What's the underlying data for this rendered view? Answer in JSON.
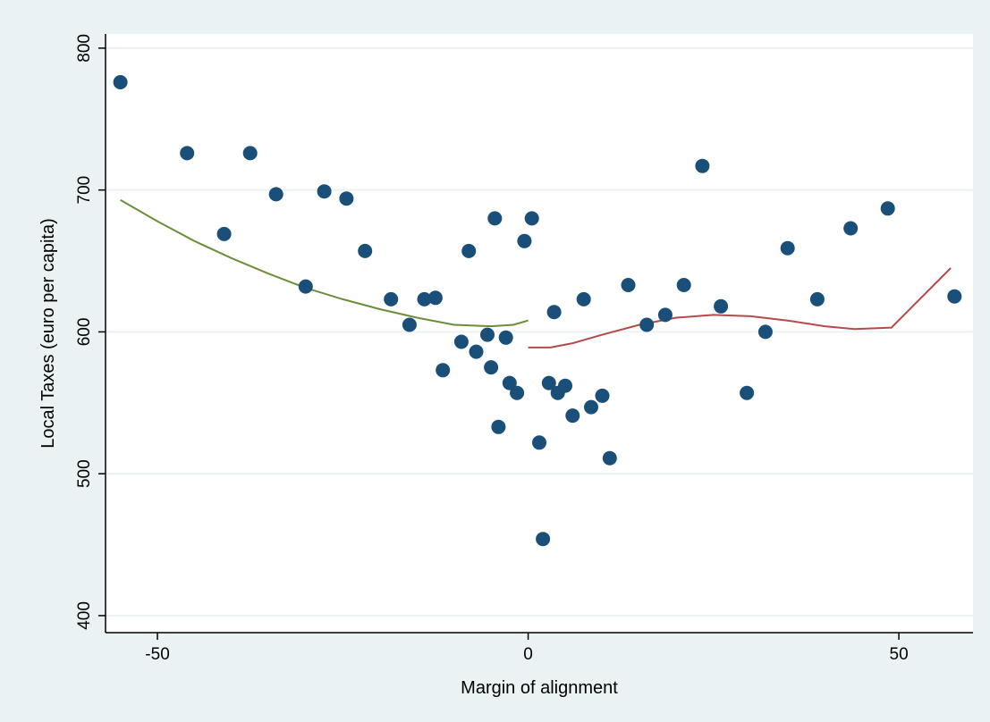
{
  "chart_data": {
    "type": "scatter",
    "title": "",
    "xlabel": "Margin of alignment",
    "ylabel": "Local Taxes (euro per capita)",
    "xlim": [
      -57,
      60
    ],
    "ylim": [
      388,
      810
    ],
    "xticks": [
      -50,
      0,
      50
    ],
    "yticks": [
      400,
      500,
      600,
      700,
      800
    ],
    "grid": true,
    "series": [
      {
        "type": "scatter",
        "color": "#1a4f7a",
        "points": [
          [
            -55,
            776
          ],
          [
            -46,
            726
          ],
          [
            -41,
            669
          ],
          [
            -37.5,
            726
          ],
          [
            -34,
            697
          ],
          [
            -30,
            632
          ],
          [
            -27.5,
            699
          ],
          [
            -24.5,
            694
          ],
          [
            -22,
            657
          ],
          [
            -18.5,
            623
          ],
          [
            -16,
            605
          ],
          [
            -14,
            623
          ],
          [
            -12.5,
            624
          ],
          [
            -11.5,
            573
          ],
          [
            -9,
            593
          ],
          [
            -8,
            657
          ],
          [
            -7,
            586
          ],
          [
            -5.5,
            598
          ],
          [
            -5,
            575
          ],
          [
            -4.5,
            680
          ],
          [
            -4,
            533
          ],
          [
            -3,
            596
          ],
          [
            -2.5,
            564
          ],
          [
            -1.5,
            557
          ],
          [
            -0.5,
            664
          ],
          [
            0.5,
            680
          ],
          [
            1.5,
            522
          ],
          [
            2,
            454
          ],
          [
            2.8,
            564
          ],
          [
            3.5,
            614
          ],
          [
            4,
            557
          ],
          [
            5,
            562
          ],
          [
            6,
            541
          ],
          [
            7.5,
            623
          ],
          [
            8.5,
            547
          ],
          [
            10,
            555
          ],
          [
            11,
            511
          ],
          [
            13.5,
            633
          ],
          [
            16,
            605
          ],
          [
            18.5,
            612
          ],
          [
            21,
            633
          ],
          [
            23.5,
            717
          ],
          [
            26,
            618
          ],
          [
            29.5,
            557
          ],
          [
            32,
            600
          ],
          [
            35,
            659
          ],
          [
            39,
            623
          ],
          [
            43.5,
            673
          ],
          [
            48.5,
            687
          ],
          [
            57.5,
            625
          ]
        ]
      },
      {
        "type": "line",
        "color": "#6b8e3a",
        "points": [
          [
            -55,
            693
          ],
          [
            -50,
            678
          ],
          [
            -45,
            664
          ],
          [
            -40,
            652
          ],
          [
            -35,
            641
          ],
          [
            -30,
            631
          ],
          [
            -25,
            623
          ],
          [
            -20,
            616
          ],
          [
            -15,
            610
          ],
          [
            -10,
            605
          ],
          [
            -5,
            604
          ],
          [
            -2,
            605
          ],
          [
            0,
            608
          ]
        ]
      },
      {
        "type": "line",
        "color": "#b54a4a",
        "points": [
          [
            0,
            589
          ],
          [
            3,
            589
          ],
          [
            6,
            592
          ],
          [
            10,
            598
          ],
          [
            15,
            605
          ],
          [
            20,
            610
          ],
          [
            25,
            612
          ],
          [
            30,
            611
          ],
          [
            35,
            608
          ],
          [
            40,
            604
          ],
          [
            44,
            602
          ],
          [
            49,
            603
          ],
          [
            57,
            645
          ]
        ]
      }
    ]
  }
}
